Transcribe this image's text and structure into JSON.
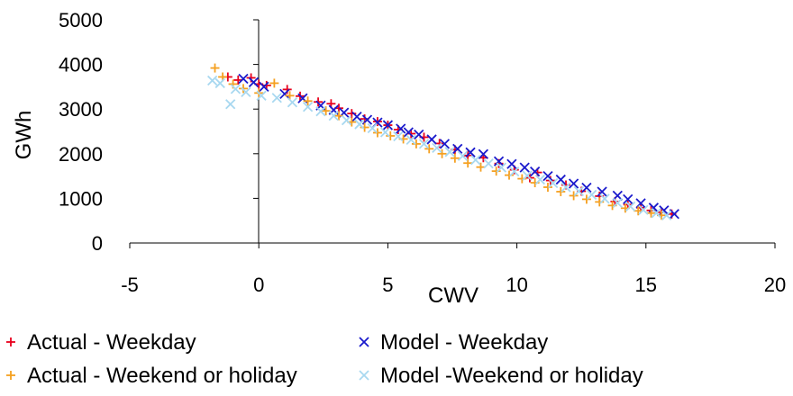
{
  "chart_data": {
    "type": "scatter",
    "title": "",
    "xlabel": "CWV",
    "ylabel": "GWh",
    "xlim": [
      -5,
      20
    ],
    "ylim": [
      0,
      5000
    ],
    "x_ticks": [
      -5,
      0,
      5,
      10,
      15,
      20
    ],
    "y_ticks": [
      0,
      1000,
      2000,
      3000,
      4000,
      5000
    ],
    "x_tick_labels": [
      "-5",
      "0",
      "5",
      "10",
      "15",
      "20"
    ],
    "y_tick_labels": [
      "0",
      "1000",
      "2000",
      "3000",
      "4000",
      "5000"
    ],
    "grid": false,
    "legend_position": "bottom",
    "series": [
      {
        "name": "Actual - Weekday",
        "marker": "plus",
        "color": "#e8001c",
        "points": [
          [
            -1.2,
            3720
          ],
          [
            -0.8,
            3650
          ],
          [
            -0.3,
            3700
          ],
          [
            0.0,
            3560
          ],
          [
            0.3,
            3530
          ],
          [
            1.1,
            3440
          ],
          [
            1.6,
            3290
          ],
          [
            2.3,
            3160
          ],
          [
            2.8,
            3120
          ],
          [
            3.1,
            3020
          ],
          [
            3.6,
            2900
          ],
          [
            4.1,
            2780
          ],
          [
            4.6,
            2720
          ],
          [
            5.0,
            2640
          ],
          [
            5.4,
            2540
          ],
          [
            5.9,
            2450
          ],
          [
            6.4,
            2370
          ],
          [
            7.0,
            2230
          ],
          [
            7.6,
            2090
          ],
          [
            8.1,
            1960
          ],
          [
            8.7,
            1910
          ],
          [
            9.3,
            1780
          ],
          [
            9.9,
            1640
          ],
          [
            10.5,
            1460
          ],
          [
            10.8,
            1580
          ],
          [
            11.3,
            1400
          ],
          [
            11.9,
            1300
          ],
          [
            12.5,
            1160
          ],
          [
            13.2,
            1050
          ],
          [
            13.8,
            930
          ],
          [
            14.3,
            860
          ],
          [
            14.8,
            790
          ],
          [
            15.2,
            730
          ],
          [
            15.6,
            690
          ],
          [
            16.0,
            650
          ]
        ]
      },
      {
        "name": "Model - Weekday",
        "marker": "x",
        "color": "#1a1acc",
        "points": [
          [
            -0.6,
            3680
          ],
          [
            -0.2,
            3600
          ],
          [
            0.2,
            3500
          ],
          [
            1.0,
            3340
          ],
          [
            1.7,
            3240
          ],
          [
            2.4,
            3080
          ],
          [
            2.9,
            2980
          ],
          [
            3.3,
            2920
          ],
          [
            3.8,
            2830
          ],
          [
            4.2,
            2760
          ],
          [
            4.6,
            2700
          ],
          [
            5.0,
            2640
          ],
          [
            5.5,
            2560
          ],
          [
            5.8,
            2480
          ],
          [
            6.2,
            2430
          ],
          [
            6.7,
            2320
          ],
          [
            7.2,
            2220
          ],
          [
            7.7,
            2110
          ],
          [
            8.2,
            2030
          ],
          [
            8.7,
            1990
          ],
          [
            9.3,
            1830
          ],
          [
            9.8,
            1770
          ],
          [
            10.3,
            1690
          ],
          [
            10.7,
            1600
          ],
          [
            11.2,
            1500
          ],
          [
            11.7,
            1420
          ],
          [
            12.2,
            1330
          ],
          [
            12.7,
            1240
          ],
          [
            13.3,
            1150
          ],
          [
            13.9,
            1060
          ],
          [
            14.3,
            980
          ],
          [
            14.8,
            890
          ],
          [
            15.3,
            790
          ],
          [
            15.7,
            730
          ],
          [
            16.1,
            650
          ]
        ]
      },
      {
        "name": "Actual - Weekend or holiday",
        "marker": "plus",
        "color": "#f5a020",
        "points": [
          [
            -1.7,
            3920
          ],
          [
            -1.4,
            3720
          ],
          [
            -1.0,
            3560
          ],
          [
            -0.6,
            3460
          ],
          [
            0.0,
            3360
          ],
          [
            0.6,
            3580
          ],
          [
            1.2,
            3300
          ],
          [
            1.9,
            3180
          ],
          [
            2.6,
            2960
          ],
          [
            3.1,
            2850
          ],
          [
            3.6,
            2710
          ],
          [
            4.1,
            2590
          ],
          [
            4.6,
            2470
          ],
          [
            5.1,
            2400
          ],
          [
            5.6,
            2330
          ],
          [
            6.1,
            2220
          ],
          [
            6.6,
            2110
          ],
          [
            7.1,
            2000
          ],
          [
            7.6,
            1900
          ],
          [
            8.1,
            1790
          ],
          [
            8.6,
            1700
          ],
          [
            9.2,
            1610
          ],
          [
            9.7,
            1520
          ],
          [
            10.2,
            1440
          ],
          [
            10.7,
            1350
          ],
          [
            11.2,
            1250
          ],
          [
            11.7,
            1150
          ],
          [
            12.2,
            1060
          ],
          [
            12.7,
            980
          ],
          [
            13.2,
            920
          ],
          [
            13.7,
            840
          ],
          [
            14.2,
            780
          ],
          [
            14.7,
            720
          ],
          [
            15.2,
            670
          ],
          [
            15.6,
            620
          ]
        ]
      },
      {
        "name": "Model -Weekend or holiday",
        "marker": "x",
        "color": "#a8d8f0",
        "points": [
          [
            -1.8,
            3640
          ],
          [
            -1.5,
            3580
          ],
          [
            -1.1,
            3110
          ],
          [
            -0.9,
            3450
          ],
          [
            -0.5,
            3380
          ],
          [
            0.1,
            3300
          ],
          [
            0.7,
            3250
          ],
          [
            1.3,
            3150
          ],
          [
            1.9,
            3050
          ],
          [
            2.4,
            2950
          ],
          [
            2.9,
            2850
          ],
          [
            3.4,
            2750
          ],
          [
            3.9,
            2660
          ],
          [
            4.4,
            2570
          ],
          [
            4.9,
            2480
          ],
          [
            5.4,
            2390
          ],
          [
            5.9,
            2310
          ],
          [
            6.4,
            2220
          ],
          [
            6.9,
            2130
          ],
          [
            7.4,
            2040
          ],
          [
            7.9,
            1950
          ],
          [
            8.4,
            1860
          ],
          [
            8.9,
            1780
          ],
          [
            9.4,
            1690
          ],
          [
            9.9,
            1600
          ],
          [
            10.4,
            1510
          ],
          [
            10.9,
            1420
          ],
          [
            11.4,
            1340
          ],
          [
            11.9,
            1250
          ],
          [
            12.4,
            1160
          ],
          [
            12.9,
            1080
          ],
          [
            13.4,
            990
          ],
          [
            13.9,
            900
          ],
          [
            14.4,
            820
          ],
          [
            14.9,
            740
          ],
          [
            15.4,
            670
          ],
          [
            15.8,
            620
          ]
        ]
      }
    ]
  }
}
